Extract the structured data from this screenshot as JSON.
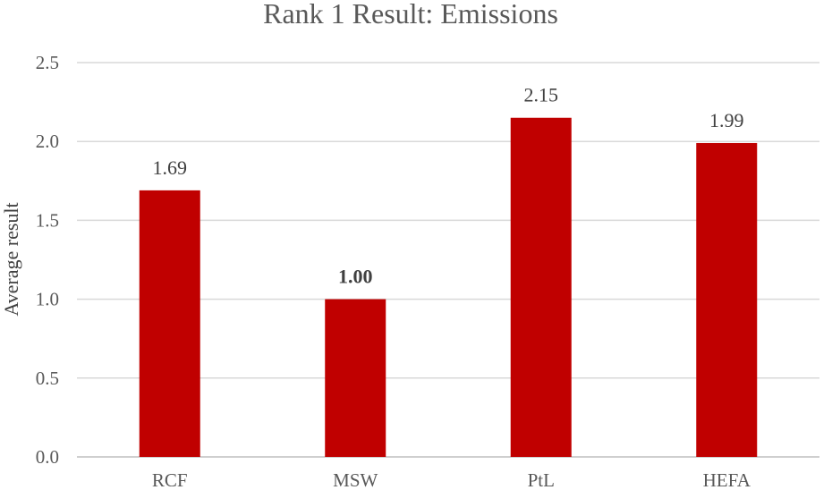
{
  "chart_data": {
    "type": "bar",
    "title": "Rank 1 Result: Emissions",
    "xlabel": "",
    "ylabel": "Average result",
    "categories": [
      "RCF",
      "MSW",
      "PtL",
      "HEFA"
    ],
    "values": [
      1.69,
      1.0,
      2.15,
      1.99
    ],
    "data_labels": [
      "1.69",
      "1.00",
      "2.15",
      "1.99"
    ],
    "bold_labels": [
      false,
      true,
      false,
      false
    ],
    "ylim": [
      0,
      2.5
    ],
    "yticks": [
      "0.0",
      "0.5",
      "1.0",
      "1.5",
      "2.0",
      "2.5"
    ],
    "bar_color": "#c00000",
    "grid": true,
    "legend": "none"
  }
}
